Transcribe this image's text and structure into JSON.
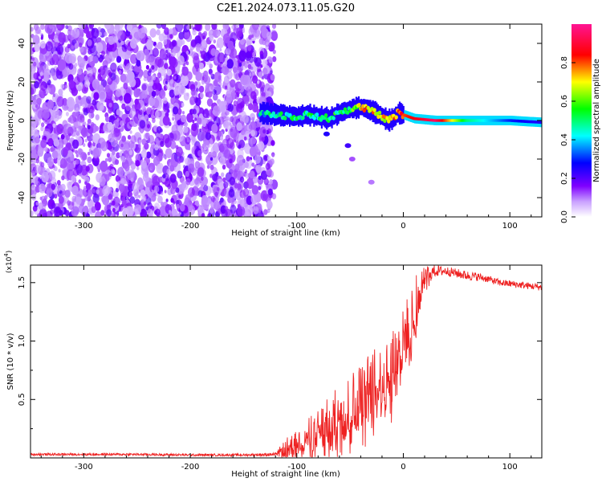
{
  "figure": {
    "title": "C2E1.2024.073.11.05.G20"
  },
  "chart_data": [
    {
      "type": "heatmap",
      "xlabel": "Height of straight line (km)",
      "ylabel": "Frequency (Hz)",
      "xlim": [
        -350,
        130
      ],
      "ylim": [
        -50,
        50
      ],
      "xticks": [
        -300,
        -200,
        -100,
        0,
        100
      ],
      "yticks": [
        -40,
        -20,
        0,
        20,
        40
      ],
      "colorbar": {
        "label": "Normalized spectral amplitude",
        "range": [
          0,
          1
        ],
        "ticks": [
          0.0,
          0.2,
          0.4,
          0.6,
          0.8
        ],
        "colors": [
          "#ffffff",
          "#9b30ff",
          "#0000ff",
          "#00ffff",
          "#00ff00",
          "#ffff00",
          "#ff0000",
          "#ff1493"
        ]
      },
      "frequency_track": {
        "x": [
          -135,
          -120,
          -100,
          -90,
          -80,
          -70,
          -60,
          -50,
          -40,
          -30,
          -20,
          -15,
          -10,
          -5,
          0,
          10,
          30,
          60,
          100,
          130
        ],
        "y": [
          4,
          3,
          2,
          3,
          2,
          1,
          4,
          6,
          7,
          5,
          2,
          0,
          1,
          4,
          3,
          1,
          0,
          0,
          0,
          -1
        ],
        "amplitude": [
          0.4,
          0.45,
          0.45,
          0.5,
          0.45,
          0.5,
          0.5,
          0.55,
          0.7,
          0.75,
          0.7,
          0.7,
          0.75,
          0.8,
          0.8,
          0.85,
          0.95,
          0.5,
          0.3,
          0.25
        ]
      },
      "noise_region": {
        "x_range": [
          -350,
          -125
        ],
        "amplitude": 0.05
      },
      "grid": false
    },
    {
      "type": "line",
      "xlabel": "Height of straight line (km)",
      "ylabel": "SNR (10 * v/v)",
      "multiplier": "(x10",
      "multiplier_exp": "4",
      "multiplier_close": ")",
      "xlim": [
        -350,
        130
      ],
      "ylim": [
        0,
        16500
      ],
      "xticks": [
        -300,
        -200,
        -100,
        0,
        100
      ],
      "yticks": [
        0.5,
        1.0,
        1.5
      ],
      "series": [
        {
          "color": "#ee2222",
          "x": [
            -350,
            -300,
            -250,
            -200,
            -150,
            -120,
            -110,
            -100,
            -90,
            -80,
            -70,
            -60,
            -50,
            -40,
            -30,
            -20,
            -10,
            0,
            10,
            20,
            30,
            40,
            50,
            60,
            70,
            80,
            90,
            100,
            110,
            120,
            130
          ],
          "y": [
            300,
            300,
            300,
            250,
            250,
            300,
            800,
            1200,
            1800,
            2500,
            3000,
            3800,
            4500,
            5200,
            6000,
            6500,
            8000,
            10000,
            13000,
            15500,
            16000,
            16000,
            15800,
            15600,
            15500,
            15300,
            15000,
            14900,
            14800,
            14700,
            14600
          ],
          "noise": [
            100,
            100,
            100,
            100,
            100,
            150,
            900,
            1200,
            1500,
            1800,
            2200,
            2500,
            2800,
            3000,
            3200,
            3200,
            3000,
            2800,
            2500,
            900,
            500,
            400,
            400,
            400,
            350,
            300,
            300,
            300,
            300,
            300,
            300
          ]
        }
      ],
      "grid": false
    }
  ]
}
